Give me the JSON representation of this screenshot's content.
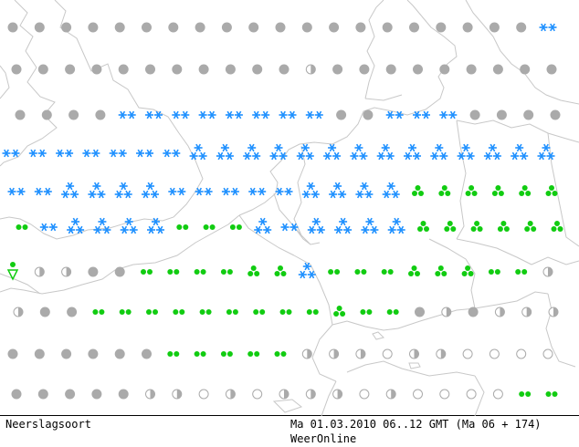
{
  "footer": {
    "legend_title": "Neerslagsoort",
    "valid_time": "Ma 01.03.2010 06..12 GMT (Ma 06 + 174)",
    "source": "WeerOnline"
  },
  "colors": {
    "snow": "#1e90ff",
    "rain": "#11cc11",
    "dry": "#aaaaaa",
    "coast": "#c8c8c8",
    "border": "#c8c8c8"
  },
  "symbol_types": [
    "dry-disc",
    "half-disc",
    "empty-circle",
    "snow-double",
    "snow-cluster",
    "rain-double",
    "rain-triple",
    "shower"
  ],
  "rows": [
    [
      "dry-disc",
      "dry-disc",
      "dry-disc",
      "dry-disc",
      "dry-disc",
      "dry-disc",
      "dry-disc",
      "dry-disc",
      "dry-disc",
      "dry-disc",
      "dry-disc",
      "dry-disc",
      "dry-disc",
      "dry-disc",
      "dry-disc",
      "dry-disc",
      "dry-disc",
      "dry-disc",
      "dry-disc",
      "dry-disc",
      "snow-double"
    ],
    [
      "dry-disc",
      "dry-disc",
      "dry-disc",
      "dry-disc",
      "dry-disc",
      "dry-disc",
      "dry-disc",
      "dry-disc",
      "dry-disc",
      "dry-disc",
      "dry-disc",
      "half-disc",
      "dry-disc",
      "dry-disc",
      "dry-disc",
      "dry-disc",
      "dry-disc",
      "dry-disc",
      "dry-disc",
      "dry-disc",
      "dry-disc"
    ],
    [
      "dry-disc",
      "dry-disc",
      "dry-disc",
      "dry-disc",
      "snow-double",
      "snow-double",
      "snow-double",
      "snow-double",
      "snow-double",
      "snow-double",
      "snow-double",
      "snow-double",
      "dry-disc",
      "dry-disc",
      "snow-double",
      "snow-double",
      "snow-double",
      "dry-disc",
      "dry-disc",
      "dry-disc",
      "dry-disc"
    ],
    [
      "snow-double",
      "snow-double",
      "snow-double",
      "snow-double",
      "snow-double",
      "snow-double",
      "snow-double",
      "snow-cluster",
      "snow-cluster",
      "snow-cluster",
      "snow-cluster",
      "snow-cluster",
      "snow-cluster",
      "snow-cluster",
      "snow-cluster",
      "snow-cluster",
      "snow-cluster",
      "snow-cluster",
      "snow-cluster",
      "snow-cluster",
      "snow-cluster"
    ],
    [
      "snow-double",
      "snow-double",
      "snow-cluster",
      "snow-cluster",
      "snow-cluster",
      "snow-cluster",
      "snow-double",
      "snow-double",
      "snow-double",
      "snow-double",
      "snow-double",
      "snow-cluster",
      "snow-cluster",
      "snow-cluster",
      "snow-cluster",
      "rain-triple",
      "rain-triple",
      "rain-triple",
      "rain-triple",
      "rain-triple",
      "rain-triple"
    ],
    [
      "rain-double",
      "snow-double",
      "snow-cluster",
      "snow-cluster",
      "snow-cluster",
      "snow-cluster",
      "rain-double",
      "rain-double",
      "rain-double",
      "snow-cluster",
      "snow-double",
      "snow-cluster",
      "snow-cluster",
      "snow-cluster",
      "snow-cluster",
      "rain-triple",
      "rain-triple",
      "rain-triple",
      "rain-triple",
      "rain-triple",
      "rain-triple"
    ],
    [
      "shower",
      "half-disc",
      "half-disc",
      "dry-disc",
      "dry-disc",
      "rain-double",
      "rain-double",
      "rain-double",
      "rain-double",
      "rain-triple",
      "rain-triple",
      "snow-cluster",
      "rain-double",
      "rain-double",
      "rain-double",
      "rain-triple",
      "rain-triple",
      "rain-triple",
      "rain-double",
      "rain-double",
      "half-disc"
    ],
    [
      "half-disc",
      "dry-disc",
      "dry-disc",
      "rain-double",
      "rain-double",
      "rain-double",
      "rain-double",
      "rain-double",
      "rain-double",
      "rain-double",
      "rain-double",
      "rain-double",
      "rain-triple",
      "rain-double",
      "rain-double",
      "dry-disc",
      "half-disc",
      "dry-disc",
      "half-disc",
      "half-disc",
      "half-disc"
    ],
    [
      "dry-disc",
      "dry-disc",
      "dry-disc",
      "dry-disc",
      "dry-disc",
      "dry-disc",
      "rain-double",
      "rain-double",
      "rain-double",
      "rain-double",
      "rain-double",
      "half-disc",
      "half-disc",
      "half-disc",
      "empty-circle",
      "half-disc",
      "half-disc",
      "empty-circle",
      "empty-circle",
      "empty-circle",
      "empty-circle"
    ],
    [
      "dry-disc",
      "dry-disc",
      "dry-disc",
      "dry-disc",
      "dry-disc",
      "half-disc",
      "half-disc",
      "empty-circle",
      "half-disc",
      "empty-circle",
      "half-disc",
      "half-disc",
      "half-disc",
      "empty-circle",
      "half-disc",
      "empty-circle",
      "empty-circle",
      "empty-circle",
      "empty-circle",
      "rain-double",
      "rain-double"
    ]
  ]
}
